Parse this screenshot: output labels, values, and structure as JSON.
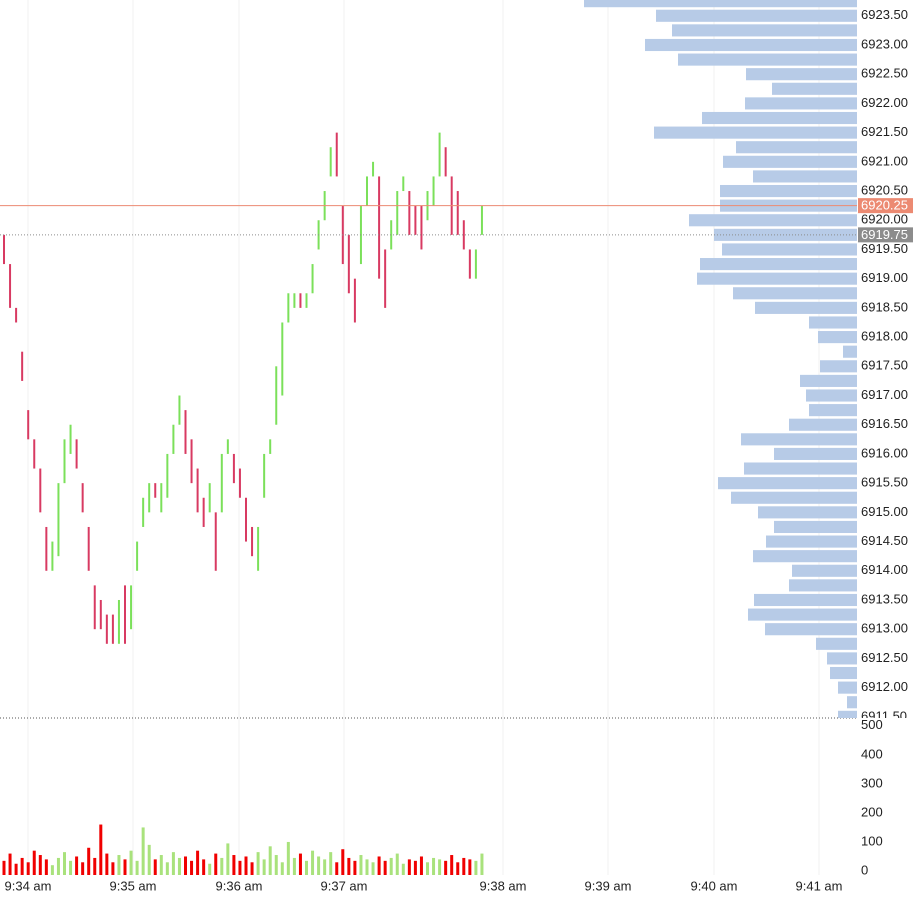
{
  "chart_data": {
    "type": "candlestick",
    "grid": true,
    "up_color": "#7be05a",
    "down_color": "#d83a62",
    "ylim": [
      6911.48,
      6923.77
    ],
    "yticks": [
      {
        "value": 6923.5,
        "label": "6923.50"
      },
      {
        "value": 6923.0,
        "label": "6923.00"
      },
      {
        "value": 6922.5,
        "label": "6922.50"
      },
      {
        "value": 6922.0,
        "label": "6922.00"
      },
      {
        "value": 6921.5,
        "label": "6921.50"
      },
      {
        "value": 6921.0,
        "label": "6921.00"
      },
      {
        "value": 6920.5,
        "label": "6920.50"
      },
      {
        "value": 6920.0,
        "label": "6920.00"
      },
      {
        "value": 6919.5,
        "label": "6919.50"
      },
      {
        "value": 6919.0,
        "label": "6919.00"
      },
      {
        "value": 6918.5,
        "label": "6918.50"
      },
      {
        "value": 6918.0,
        "label": "6918.00"
      },
      {
        "value": 6917.5,
        "label": "6917.50"
      },
      {
        "value": 6917.0,
        "label": "6917.00"
      },
      {
        "value": 6916.5,
        "label": "6916.50"
      },
      {
        "value": 6916.0,
        "label": "6916.00"
      },
      {
        "value": 6915.5,
        "label": "6915.50"
      },
      {
        "value": 6915.0,
        "label": "6915.00"
      },
      {
        "value": 6914.5,
        "label": "6914.50"
      },
      {
        "value": 6914.0,
        "label": "6914.00"
      },
      {
        "value": 6913.5,
        "label": "6913.50"
      },
      {
        "value": 6913.0,
        "label": "6913.00"
      },
      {
        "value": 6912.5,
        "label": "6912.50"
      },
      {
        "value": 6912.0,
        "label": "6912.00"
      },
      {
        "value": 6911.5,
        "label": "6911.50"
      }
    ],
    "x_labels": [
      "9:34 am",
      "9:35 am",
      "9:36 am",
      "9:37 am",
      "9:38 am",
      "9:39 am",
      "9:40 am",
      "9:41 am"
    ],
    "open": [
      6919.75,
      6919.25,
      6918.5,
      6917.75,
      6916.75,
      6916.25,
      6915.75,
      6914.75,
      6914.0,
      6914.25,
      6915.5,
      6916.0,
      6916.25,
      6915.5,
      6914.75,
      6913.75,
      6913.5,
      6913.25,
      6913.25,
      6912.75,
      6913.75,
      6913.0,
      6914.0,
      6914.75,
      6915.0,
      6915.5,
      6915.0,
      6915.25,
      6916.0,
      6916.5,
      6916.75,
      6916.25,
      6915.75,
      6915.25,
      6915.0,
      6915.0,
      6915.0,
      6916.0,
      6916.0,
      6915.75,
      6915.25,
      6914.75,
      6914.0,
      6915.25,
      6916.0,
      6916.5,
      6917.0,
      6918.25,
      6918.5,
      6918.75,
      6918.5,
      6918.75,
      6919.5,
      6920.0,
      6920.75,
      6921.5,
      6920.25,
      6919.75,
      6919.0,
      6919.25,
      6920.25,
      6920.75,
      6920.75,
      6919.5,
      6919.5,
      6919.75,
      6920.5,
      6920.5,
      6920.25,
      6920.25,
      6920.0,
      6920.25,
      6920.75,
      6921.25,
      6920.75,
      6920.5,
      6920.0,
      6919.5,
      6919.0,
      6919.75
    ],
    "close": [
      6919.25,
      6918.5,
      6918.25,
      6917.25,
      6916.25,
      6915.75,
      6915.0,
      6914.0,
      6914.5,
      6915.5,
      6916.25,
      6916.5,
      6915.75,
      6915.0,
      6914.0,
      6913.0,
      6913.0,
      6912.75,
      6912.75,
      6913.5,
      6912.75,
      6913.75,
      6914.5,
      6915.25,
      6915.5,
      6915.25,
      6915.5,
      6916.0,
      6916.5,
      6917.0,
      6916.0,
      6915.5,
      6915.0,
      6914.75,
      6915.5,
      6914.0,
      6916.0,
      6916.25,
      6915.5,
      6915.25,
      6914.5,
      6914.25,
      6914.75,
      6916.0,
      6916.25,
      6917.5,
      6918.25,
      6918.75,
      6918.75,
      6918.5,
      6918.75,
      6919.25,
      6920.0,
      6920.5,
      6921.25,
      6920.75,
      6919.25,
      6918.75,
      6918.25,
      6920.25,
      6920.75,
      6921.0,
      6919.0,
      6918.5,
      6920.0,
      6920.5,
      6920.75,
      6919.75,
      6919.75,
      6919.5,
      6920.5,
      6920.75,
      6921.5,
      6920.75,
      6919.75,
      6919.75,
      6919.5,
      6919.0,
      6919.5,
      6920.25
    ],
    "volume": {
      "up_color": "#a9e27c",
      "down_color": "#f00000",
      "ylim": [
        0,
        520
      ],
      "yticks": [
        500,
        400,
        300,
        200,
        100,
        0
      ],
      "values": [
        35,
        60,
        25,
        45,
        30,
        70,
        55,
        40,
        20,
        45,
        65,
        35,
        50,
        30,
        80,
        45,
        160,
        60,
        30,
        55,
        40,
        70,
        35,
        150,
        90,
        40,
        55,
        30,
        65,
        45,
        50,
        35,
        70,
        40,
        25,
        60,
        45,
        95,
        55,
        35,
        50,
        30,
        65,
        40,
        85,
        55,
        30,
        100,
        45,
        60,
        35,
        70,
        50,
        40,
        65,
        30,
        75,
        45,
        35,
        55,
        40,
        30,
        50,
        35,
        45,
        60,
        25,
        40,
        35,
        50,
        30,
        45,
        40,
        35,
        55,
        30,
        45,
        40,
        35,
        60
      ]
    },
    "profile": {
      "color": "#b7cbe7",
      "prices": [
        6923.75,
        6923.5,
        6923.25,
        6923.0,
        6922.75,
        6922.5,
        6922.25,
        6922.0,
        6921.75,
        6921.5,
        6921.25,
        6921.0,
        6920.75,
        6920.5,
        6920.25,
        6920.0,
        6919.75,
        6919.5,
        6919.25,
        6919.0,
        6918.75,
        6918.5,
        6918.25,
        6918.0,
        6917.75,
        6917.5,
        6917.25,
        6917.0,
        6916.75,
        6916.5,
        6916.25,
        6916.0,
        6915.75,
        6915.5,
        6915.25,
        6915.0,
        6914.75,
        6914.5,
        6914.25,
        6914.0,
        6913.75,
        6913.5,
        6913.25,
        6913.0,
        6912.75,
        6912.5,
        6912.25,
        6912.0,
        6911.75,
        6911.5
      ],
      "values": [
        273,
        201,
        185,
        212,
        179,
        111,
        85,
        112,
        155,
        203,
        121,
        134,
        104,
        137,
        137,
        168,
        143,
        135,
        157,
        160,
        124,
        102,
        48,
        39,
        14,
        37,
        57,
        51,
        48,
        68,
        116,
        83,
        113,
        139,
        126,
        99,
        83,
        91,
        104,
        65,
        68,
        103,
        109,
        92,
        41,
        30,
        27,
        19,
        10,
        19
      ]
    },
    "last_price": {
      "value": 6920.25,
      "label": "6920.25",
      "color": "#ec8a72"
    },
    "mark_price": {
      "value": 6919.75,
      "label": "6919.75",
      "color": "#8c8c8c"
    }
  }
}
